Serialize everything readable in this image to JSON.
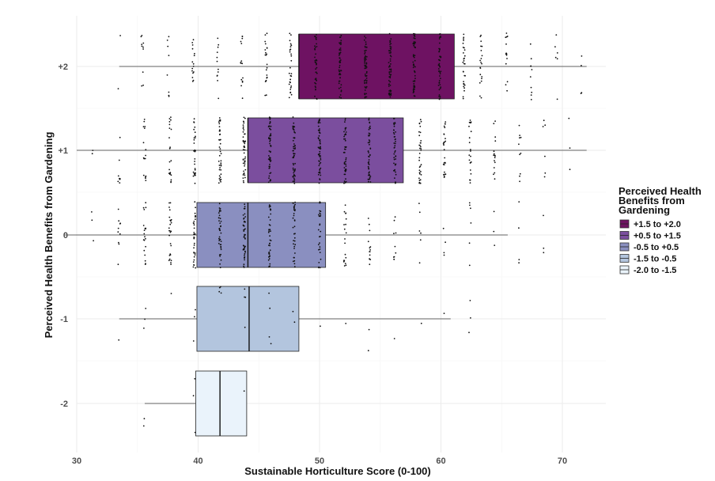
{
  "chart_data": {
    "type": "boxplot",
    "orientation": "horizontal",
    "xlabel": "Sustainable Horticulture Score (0-100)",
    "ylabel": "Perceived Health Benefits from Gardening",
    "xlim": [
      28,
      72
    ],
    "ylim": [
      -2.6,
      2.6
    ],
    "x_ticks": [
      30,
      40,
      50,
      60,
      70
    ],
    "y_ticks": [
      -2,
      -1,
      0,
      1,
      2
    ],
    "y_tick_labels": [
      "-2",
      "-1",
      "0",
      "+1",
      "+2"
    ],
    "grid": true,
    "legend": {
      "title": "Perceived Health Benefits from Gardening",
      "title_lines": [
        "Perceived Health",
        "Benefits from",
        "Gardening"
      ],
      "placement": "right",
      "entries": [
        {
          "label": "+1.5 to +2.0",
          "color": "#6e1262"
        },
        {
          "label": "+0.5 to +1.5",
          "color": "#7b4e9e"
        },
        {
          "label": "-0.5 to +0.5",
          "color": "#8a8fc0"
        },
        {
          "label": "-1.5 to -0.5",
          "color": "#b3c5de"
        },
        {
          "label": "-2.0 to -1.5",
          "color": "#eaf3fb"
        }
      ]
    },
    "boxes": [
      {
        "group": "+2",
        "y": 2,
        "whisker_low": 33.5,
        "q1": 48.3,
        "median": 48.3,
        "q3": 61.1,
        "whisker_high": 72,
        "fill": "#6e1262",
        "jitter_x": [
          33.5,
          35.4,
          37.5,
          39.6,
          41.6,
          43.6,
          45.6,
          47.6,
          49.7,
          51.7,
          53.8,
          55.8,
          57.8,
          59.9,
          61.9,
          63.3,
          65.4,
          67.4,
          69.5,
          71.6
        ],
        "jitter_n": [
          2,
          10,
          8,
          16,
          12,
          16,
          22,
          30,
          40,
          52,
          60,
          62,
          58,
          46,
          30,
          20,
          14,
          10,
          6,
          4
        ]
      },
      {
        "group": "+1",
        "y": 1,
        "whisker_low": 30,
        "q1": 44.1,
        "median": 44.1,
        "q3": 56.9,
        "whisker_high": 72,
        "fill": "#7b4e9e",
        "jitter_x": [
          31.3,
          33.5,
          35.6,
          37.7,
          39.7,
          41.8,
          43.8,
          45.9,
          47.9,
          50.0,
          52.1,
          54.1,
          56.2,
          58.3,
          60.3,
          62.4,
          64.4,
          66.5,
          68.5,
          70.6
        ],
        "jitter_n": [
          2,
          8,
          16,
          22,
          30,
          40,
          50,
          56,
          58,
          56,
          52,
          48,
          42,
          34,
          26,
          22,
          16,
          10,
          6,
          3
        ]
      },
      {
        "group": "0",
        "y": 0,
        "whisker_low": 29,
        "q1": 39.9,
        "median": 44.1,
        "q3": 50.5,
        "whisker_high": 65.5,
        "fill": "#8a8fc0",
        "jitter_x": [
          31.3,
          33.5,
          35.6,
          37.7,
          39.7,
          41.8,
          43.8,
          45.9,
          47.9,
          50.0,
          52.1,
          54.1,
          56.2,
          58.3,
          60.3,
          62.4,
          64.4,
          66.5,
          68.5
        ],
        "jitter_n": [
          3,
          10,
          20,
          26,
          34,
          40,
          44,
          40,
          34,
          28,
          20,
          14,
          10,
          6,
          4,
          6,
          3,
          4,
          3
        ]
      },
      {
        "group": "-1",
        "y": -1,
        "whisker_low": 33.5,
        "q1": 39.9,
        "median": 44.2,
        "q3": 48.3,
        "whisker_high": 60.8,
        "fill": "#b3c5de",
        "jitter_x": [
          33.5,
          35.6,
          37.7,
          39.7,
          41.8,
          43.8,
          45.9,
          47.9,
          50.0,
          52.1,
          54.1,
          56.2,
          58.3,
          60.3,
          62.4
        ],
        "jitter_n": [
          1,
          3,
          1,
          3,
          4,
          4,
          4,
          2,
          1,
          1,
          2,
          1,
          1,
          1,
          3
        ]
      },
      {
        "group": "-2",
        "y": -2,
        "whisker_low": 35.6,
        "q1": 39.8,
        "median": 41.8,
        "q3": 44.0,
        "whisker_high": 44.0,
        "fill": "#eaf3fb",
        "jitter_x": [
          35.6,
          39.7,
          43.8
        ],
        "jitter_n": [
          2,
          3,
          1
        ]
      }
    ]
  }
}
